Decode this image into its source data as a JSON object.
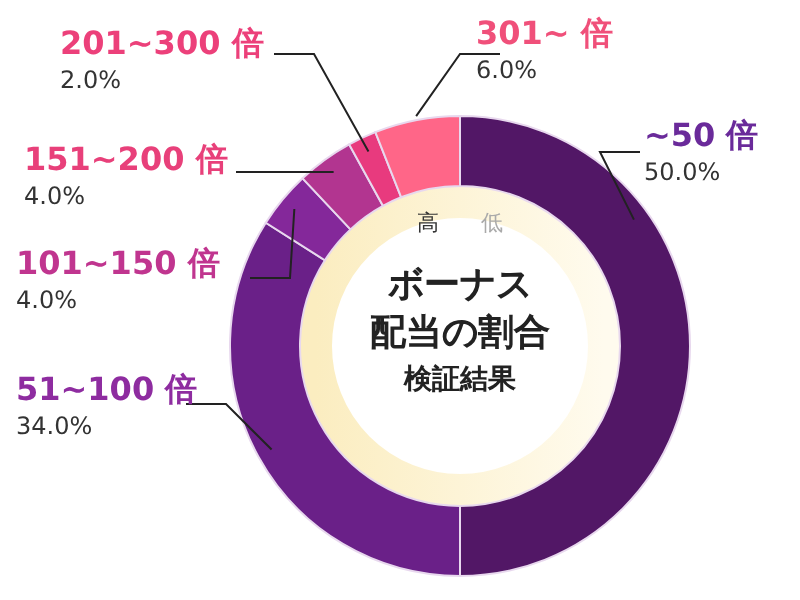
{
  "chart_data": {
    "type": "donut",
    "title": "ボーナス配当の割合",
    "subtitle": "検証結果",
    "categories": [
      "~50 倍",
      "51~100 倍",
      "101~150 倍",
      "151~200 倍",
      "201~300 倍",
      "301~ 倍"
    ],
    "values": [
      50,
      34,
      4,
      4,
      2,
      6
    ],
    "value_labels": [
      "50.0%",
      "34.0%",
      "4.0%",
      "4.0%",
      "2.0%",
      "6.0%"
    ],
    "colors": [
      "#521766",
      "#6a2088",
      "#84289a",
      "#b23590",
      "#e83a7e",
      "#ff6688"
    ],
    "annotations": [
      "高",
      "低"
    ]
  }
}
